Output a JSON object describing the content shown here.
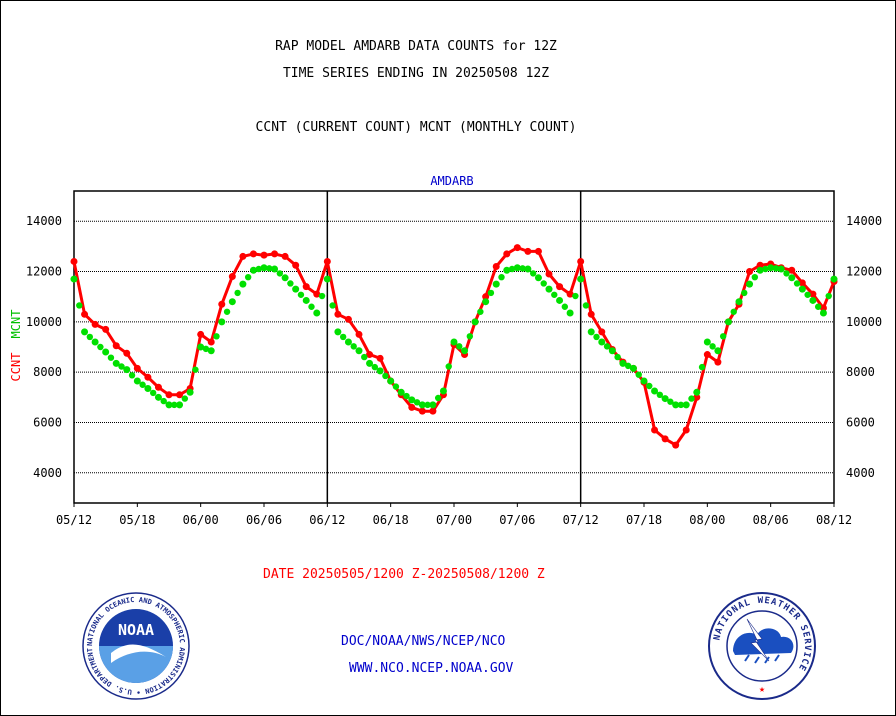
{
  "header": {
    "title_line1": "RAP MODEL AMDARB DATA COUNTS for 12Z",
    "title_line2": "TIME SERIES ENDING IN 20250508 12Z",
    "subtitle": "CCNT (CURRENT COUNT) MCNT (MONTHLY COUNT)"
  },
  "footer": {
    "date_range": "DATE 20250505/1200 Z-20250508/1200 Z",
    "credit_line1": "DOC/NOAA/NWS/NCEP/NCO",
    "credit_line2": "WWW.NCO.NCEP.NOAA.GOV"
  },
  "logos": {
    "left": {
      "name": "NOAA",
      "ring_text": "NATIONAL OCEANIC AND ATMOSPHERIC ADMINISTRATION • U.S. DEPARTMENT OF COMMERCE •"
    },
    "right": {
      "ring_text": "NATIONAL WEATHER SERVICE"
    }
  },
  "colors": {
    "ccnt": "#ff0000",
    "mcnt": "#00e000",
    "plot_title": "#0000cc",
    "grid": "#000000"
  },
  "chart_data": {
    "type": "line",
    "title": "AMDARB",
    "ylabel_ccnt": "CCNT",
    "ylabel_mcnt": "MCNT",
    "ylim": [
      2800,
      15200
    ],
    "yticks": [
      4000,
      6000,
      8000,
      10000,
      12000,
      14000
    ],
    "ytick_labels": [
      "4000",
      "6000",
      "8000",
      "10000",
      "12000",
      "14000"
    ],
    "xtick_labels": [
      "05/12",
      "05/18",
      "06/00",
      "06/06",
      "06/12",
      "06/18",
      "07/00",
      "07/06",
      "07/12",
      "07/18",
      "08/00",
      "08/06",
      "08/12"
    ],
    "x_range_hours": [
      0,
      72
    ],
    "day_separators": [
      24,
      48
    ],
    "grid": "horizontal dotted at y ticks",
    "series": [
      {
        "name": "CCNT",
        "x": [
          0,
          1,
          2,
          3,
          4,
          5,
          6,
          7,
          8,
          9,
          10,
          11,
          12,
          13,
          14,
          15,
          16,
          17,
          18,
          19,
          20,
          21,
          22,
          23,
          24,
          25,
          26,
          27,
          28,
          29,
          30,
          31,
          32,
          33,
          34,
          35,
          36,
          37,
          38,
          39,
          40,
          41,
          42,
          43,
          44,
          45,
          46,
          47,
          48,
          49,
          50,
          51,
          52,
          53,
          54,
          55,
          56,
          57,
          58,
          59,
          60,
          61,
          62,
          63,
          64,
          65,
          66,
          67,
          68,
          69,
          70,
          71,
          72
        ],
        "values": [
          12400,
          10300,
          9900,
          9700,
          9050,
          8750,
          8150,
          7800,
          7400,
          7100,
          7100,
          7350,
          9500,
          9200,
          10700,
          11800,
          12600,
          12700,
          12650,
          12700,
          12600,
          12250,
          11400,
          11100,
          12400,
          10300,
          10100,
          9500,
          8700,
          8550,
          7650,
          7100,
          6600,
          6450,
          6450,
          7100,
          9100,
          8700,
          10000,
          11000,
          12200,
          12700,
          12950,
          12800,
          12800,
          11900,
          11400,
          11100,
          12400,
          10300,
          9600,
          8900,
          8400,
          8150,
          7600,
          5700,
          5350,
          5100,
          5700,
          7000,
          8700,
          8400,
          10000,
          10700,
          12000,
          12250,
          12300,
          12150,
          12050,
          11550,
          11100,
          10550,
          11600
        ]
      },
      {
        "name": "MCNT",
        "x": [
          0,
          1,
          2,
          3,
          4,
          5,
          6,
          7,
          8,
          9,
          10,
          11,
          12,
          13,
          14,
          15,
          16,
          17,
          18,
          19,
          20,
          21,
          22,
          23,
          24,
          25,
          26,
          27,
          28,
          29,
          30,
          31,
          32,
          33,
          34,
          35,
          36,
          37,
          38,
          39,
          40,
          41,
          42,
          43,
          44,
          45,
          46,
          47,
          48,
          49,
          50,
          51,
          52,
          53,
          54,
          55,
          56,
          57,
          58,
          59,
          60,
          61,
          62,
          63,
          64,
          65,
          66,
          67,
          68,
          69,
          70,
          71,
          72
        ],
        "values": [
          11700,
          9600,
          9200,
          8800,
          8350,
          8100,
          7650,
          7350,
          7000,
          6700,
          6700,
          7200,
          9000,
          8850,
          10000,
          10800,
          11500,
          12050,
          12150,
          12100,
          11750,
          11300,
          10850,
          10350,
          11700,
          9600,
          9200,
          8850,
          8350,
          8050,
          7650,
          7200,
          6900,
          6700,
          6700,
          7250,
          9200,
          8850,
          10000,
          10800,
          11500,
          12050,
          12150,
          12100,
          11750,
          11300,
          10850,
          10350,
          11700,
          9600,
          9200,
          8850,
          8350,
          8150,
          7650,
          7250,
          6950,
          6700,
          6700,
          7200,
          9200,
          8850,
          10000,
          10800,
          11500,
          12050,
          12150,
          12100,
          11750,
          11300,
          10850,
          10350,
          11700
        ]
      }
    ]
  }
}
